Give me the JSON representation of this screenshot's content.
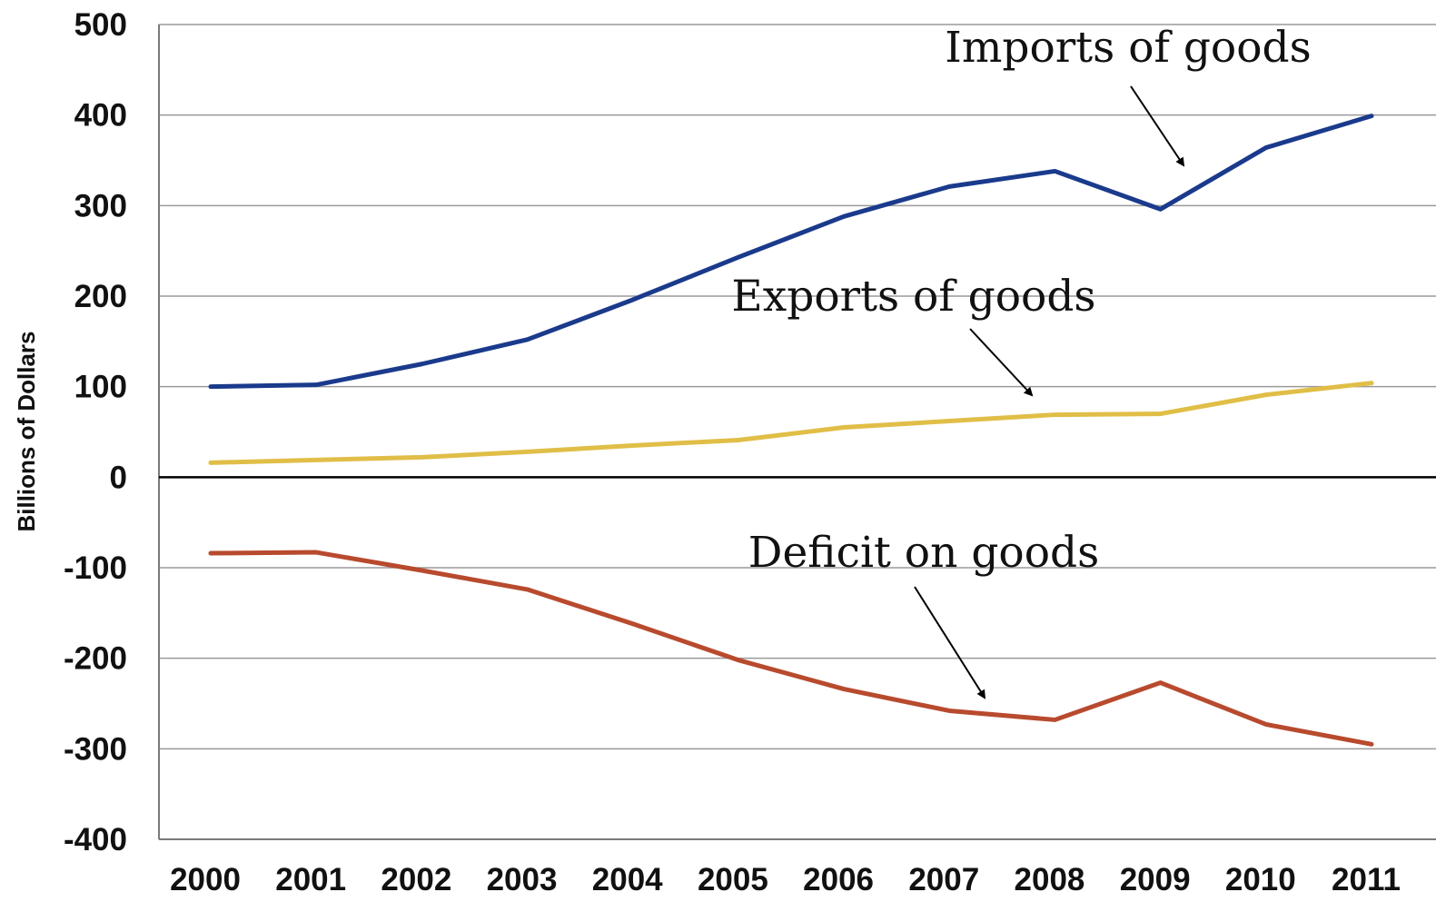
{
  "chart_data": {
    "type": "line",
    "title": "",
    "xlabel": "",
    "ylabel": "Billions of Dollars",
    "ylim": [
      -400,
      500
    ],
    "yticks": [
      500,
      400,
      300,
      200,
      100,
      0,
      -100,
      -200,
      -300,
      -400
    ],
    "yticklabels": [
      "500",
      "400",
      "300",
      "200",
      "100",
      "0",
      "-100",
      "-200",
      "-300",
      "-400"
    ],
    "categories": [
      "2000",
      "2001",
      "2002",
      "2003",
      "2004",
      "2005",
      "2006",
      "2007",
      "2008",
      "2009",
      "2010",
      "2011"
    ],
    "grid": true,
    "series": [
      {
        "name": "Imports of goods",
        "color": "#1a3a8c",
        "values": [
          100,
          102,
          125,
          152,
          196,
          243,
          288,
          321,
          338,
          296,
          364,
          399
        ]
      },
      {
        "name": "Exports of goods",
        "color": "#e0be47",
        "values": [
          16,
          19,
          22,
          28,
          35,
          41,
          55,
          62,
          69,
          70,
          91,
          104
        ]
      },
      {
        "name": "Deficit on goods",
        "color": "#b84a2e",
        "values": [
          -84,
          -83,
          -103,
          -124,
          -162,
          -202,
          -234,
          -258,
          -268,
          -227,
          -273,
          -295
        ]
      }
    ],
    "annotations": [
      {
        "text": "Imports of goods",
        "series": 0
      },
      {
        "text": "Exports of goods",
        "series": 1
      },
      {
        "text": "Deficit on goods",
        "series": 2
      }
    ]
  }
}
